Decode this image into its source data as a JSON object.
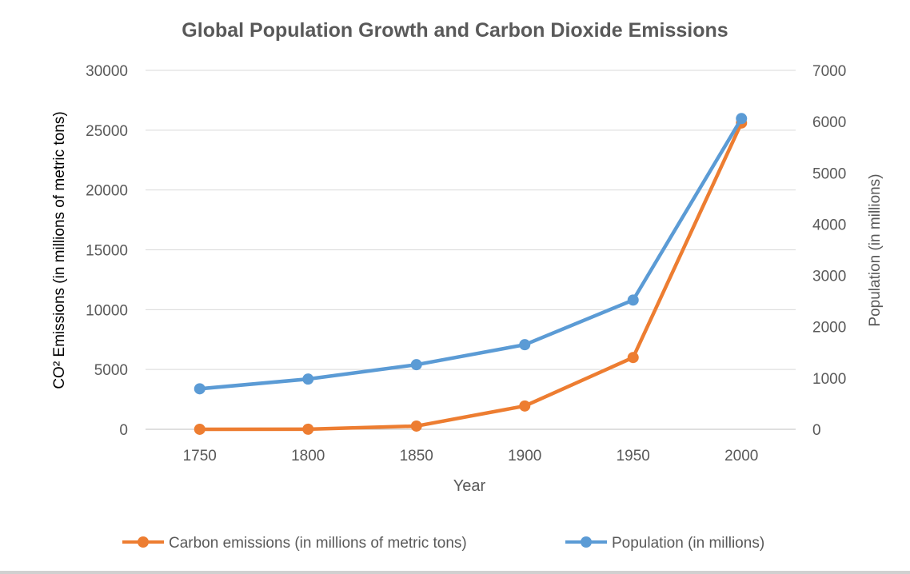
{
  "chart_data": {
    "type": "line",
    "title": "Global Population Growth and Carbon Dioxide Emissions",
    "xlabel": "Year",
    "ylabel_left": "CO² Emissions (in millions of metric tons)",
    "ylabel_right": "Population (in millions)",
    "categories": [
      "1750",
      "1800",
      "1850",
      "1900",
      "1950",
      "2000"
    ],
    "left_axis": {
      "min": 0,
      "max": 30000,
      "ticks": [
        "0",
        "5000",
        "10000",
        "15000",
        "20000",
        "25000",
        "30000"
      ]
    },
    "right_axis": {
      "min": 0,
      "max": 7000,
      "ticks": [
        "0",
        "1000",
        "2000",
        "3000",
        "4000",
        "5000",
        "6000",
        "7000"
      ]
    },
    "grid": true,
    "legend_position": "bottom",
    "series": [
      {
        "name": "Carbon emissions (in millions of metric tons)",
        "axis": "left",
        "color": "#ed7d31",
        "values": [
          3,
          8,
          270,
          1950,
          6000,
          25600
        ]
      },
      {
        "name": "Population (in millions)",
        "axis": "right",
        "color": "#5b9bd5",
        "values": [
          790,
          980,
          1260,
          1650,
          2520,
          6060
        ]
      }
    ]
  }
}
